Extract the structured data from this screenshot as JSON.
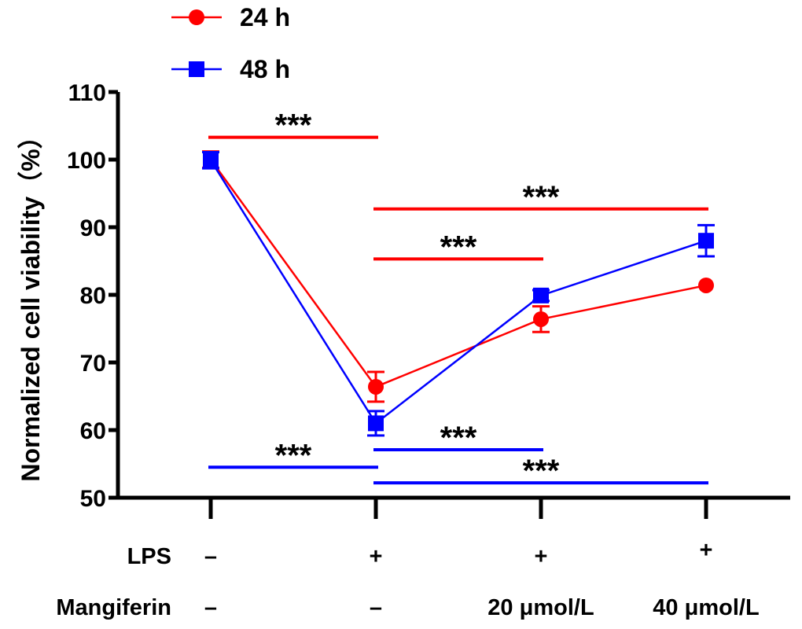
{
  "chart_data": {
    "type": "line",
    "ylabel": "Normalized cell viability（%）",
    "ylim": [
      50,
      110
    ],
    "yticks": [
      50,
      60,
      70,
      80,
      90,
      100,
      110
    ],
    "x": [
      1,
      2,
      3,
      4
    ],
    "series": [
      {
        "name": "24 h",
        "marker": "circle",
        "color": "#ff0000",
        "values": [
          100,
          66.4,
          76.4,
          81.4
        ],
        "errors": [
          1.2,
          2.2,
          1.9,
          0
        ]
      },
      {
        "name": "48 h",
        "marker": "square",
        "color": "#0000ff",
        "values": [
          99.9,
          61.0,
          79.9,
          88.0
        ],
        "errors": [
          1.2,
          1.8,
          0.8,
          2.3
        ]
      }
    ],
    "conditions": [
      {
        "label": "LPS",
        "values": [
          "–",
          "+",
          "+",
          "+"
        ]
      },
      {
        "label": "Mangiferin",
        "values": [
          "–",
          "–",
          "20 μmol/L",
          "40 μmol/L"
        ]
      }
    ],
    "significance": [
      {
        "series": "24 h",
        "from": 1,
        "to": 2,
        "y": 103.3,
        "label": "***"
      },
      {
        "series": "24 h",
        "from": 2,
        "to": 4,
        "y": 92.7,
        "label": "***"
      },
      {
        "series": "24 h",
        "from": 2,
        "to": 3,
        "y": 85.3,
        "label": "***"
      },
      {
        "series": "48 h",
        "from": 2,
        "to": 3,
        "y": 57.1,
        "label": "***"
      },
      {
        "series": "48 h",
        "from": 1,
        "to": 2,
        "y": 54.5,
        "label": "***"
      },
      {
        "series": "48 h",
        "from": 2,
        "to": 4,
        "y": 52.2,
        "label": "***"
      }
    ]
  }
}
